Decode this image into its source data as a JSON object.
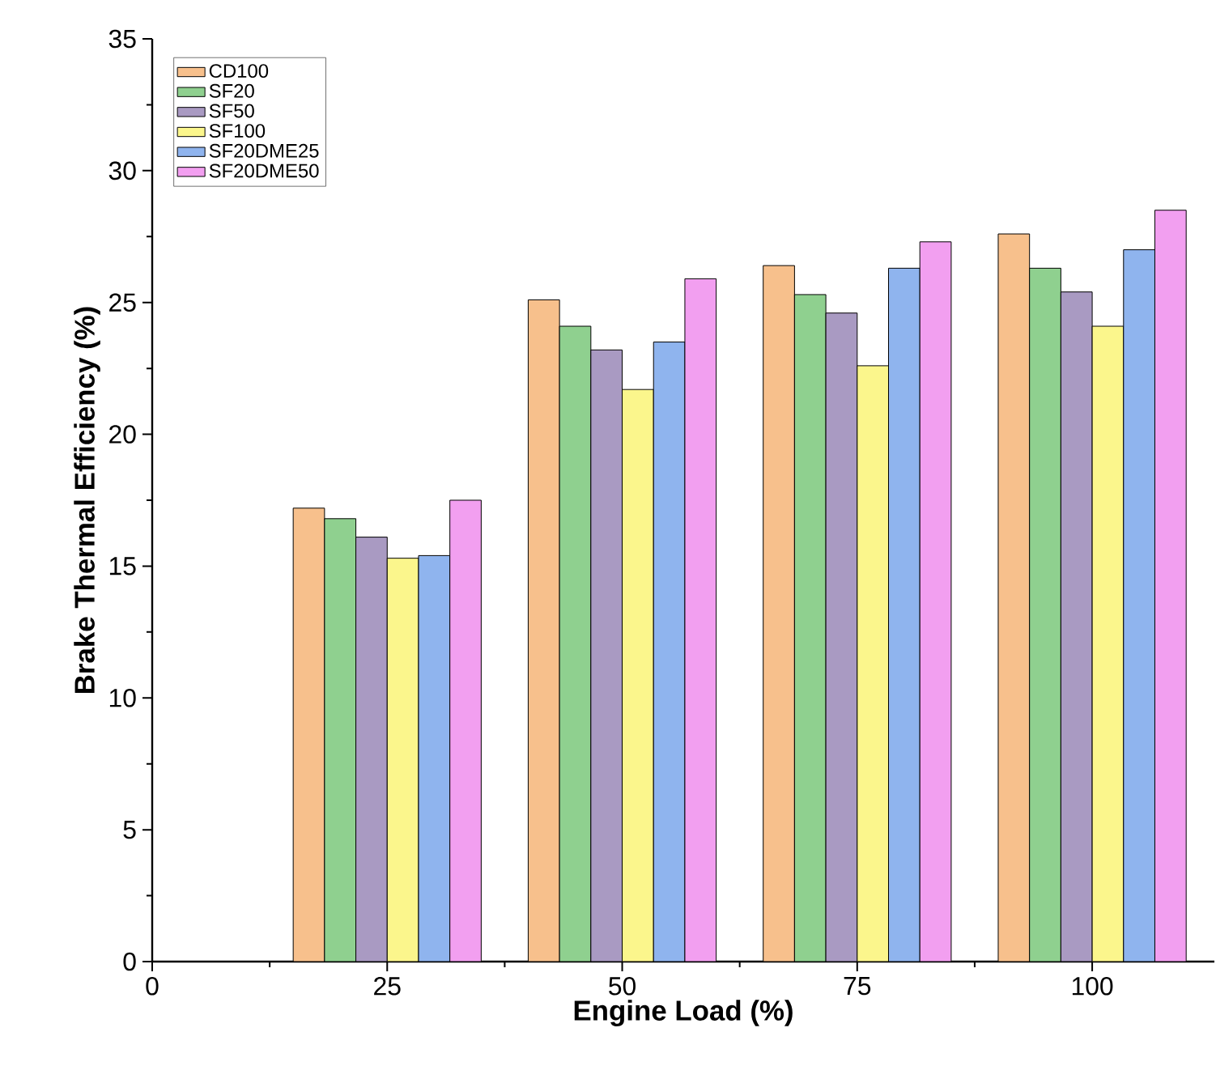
{
  "chart_data": {
    "type": "bar",
    "xlabel": "Engine Load (%)",
    "ylabel": "Brake Thermal Efficiency (%)",
    "x": [
      25,
      50,
      75,
      100
    ],
    "series": [
      {
        "name": "CD100",
        "color": "#f7c08c",
        "values": [
          17.2,
          25.1,
          26.4,
          27.6
        ]
      },
      {
        "name": "SF20",
        "color": "#8fd08f",
        "values": [
          16.8,
          24.1,
          25.3,
          26.3
        ]
      },
      {
        "name": "SF50",
        "color": "#a99ac2",
        "values": [
          16.1,
          23.2,
          24.6,
          25.4
        ]
      },
      {
        "name": "SF100",
        "color": "#fbf68c",
        "values": [
          15.3,
          21.7,
          22.6,
          24.1
        ]
      },
      {
        "name": "SF20DME25",
        "color": "#8fb4ee",
        "values": [
          15.4,
          23.5,
          26.3,
          27.0
        ]
      },
      {
        "name": "SF20DME50",
        "color": "#f29ff0",
        "values": [
          17.5,
          25.9,
          27.3,
          28.5
        ]
      }
    ],
    "xlim": [
      0,
      113
    ],
    "xticks": [
      0,
      25,
      50,
      75,
      100
    ],
    "ylim": [
      0,
      35
    ],
    "yticks": [
      0,
      5,
      10,
      15,
      20,
      25,
      30,
      35
    ],
    "legend": "top left",
    "grid": false
  }
}
